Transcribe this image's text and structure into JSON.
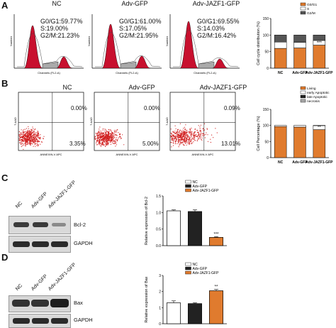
{
  "panels": {
    "A": "A",
    "B": "B",
    "C": "C",
    "D": "D"
  },
  "panelA": {
    "histograms": [
      {
        "title": "NC",
        "g0g1": "G0/G1:59.77%",
        "s": "S:19.00%",
        "g2m": "G2/M:21.23%"
      },
      {
        "title": "Adv-GFP",
        "g0g1": "G0/G1:61.00%",
        "s": "S:17.05%",
        "g2m": "G2/M:21.95%"
      },
      {
        "title": "Adv-JAZF1-GFP",
        "g0g1": "G0/G1:69.55%",
        "s": "S:14.03%",
        "g2m": "G2/M:16.42%"
      }
    ],
    "hist_axis_x": "Channels (FL2-A)",
    "hist_axis_y": "Number"
  },
  "panelB": {
    "plots": [
      {
        "title": "NC",
        "ur": "0.00%",
        "lr": "3.35%"
      },
      {
        "title": "Adv-GFP",
        "ur": "0.00%",
        "lr": "5.00%"
      },
      {
        "title": "Adv-JAZF1-GFP",
        "ur": "0.09%",
        "lr": "13.01%"
      }
    ],
    "scatter_axis_x": "ANNEXIN-V APC",
    "scatter_axis_y": "7-AAD"
  },
  "blotC": {
    "lanes": [
      "NC",
      "Adv-GFP",
      "Adv-JAZF1-GFP"
    ],
    "bands": [
      "Bcl-2",
      "GAPDH"
    ]
  },
  "blotD": {
    "lanes": [
      "NC",
      "Adv-GFP",
      "Adv-JAZF1-GFP"
    ],
    "bands": [
      "Bax",
      "GAPDH"
    ]
  },
  "colors": {
    "orange": "#e07b2e",
    "white": "#ffffff",
    "black": "#222222",
    "gray": "#7a7a7a",
    "red": "#c8102e"
  },
  "chart_data": [
    {
      "id": "cell-cycle",
      "type": "bar",
      "stacked": true,
      "categories": [
        "NC",
        "Adv-GFP",
        "Adv-JAZF1-GFP"
      ],
      "series": [
        {
          "name": "G0/G1",
          "color": "#e07b2e",
          "values": [
            59.77,
            61.0,
            69.55
          ]
        },
        {
          "name": "S",
          "color": "#ffffff",
          "values": [
            19.0,
            17.05,
            14.03
          ]
        },
        {
          "name": "G2/M",
          "color": "#555555",
          "values": [
            21.23,
            21.95,
            16.42
          ]
        }
      ],
      "ylabel": "Cell cycle distribution (%)",
      "ylim": [
        0,
        150
      ],
      "yticks": [
        0,
        50,
        100,
        150
      ],
      "annotations": [
        {
          "category": "Adv-JAZF1-GFP",
          "text": "***"
        }
      ],
      "legend": "top-right"
    },
    {
      "id": "apoptosis",
      "type": "bar",
      "stacked": true,
      "categories": [
        "NC",
        "Adv-GFP",
        "Adv-JAZF1-GFP"
      ],
      "series": [
        {
          "name": "Living",
          "color": "#e07b2e",
          "values": [
            96.65,
            95.0,
            86.9
          ]
        },
        {
          "name": "early Apoptotic",
          "color": "#ffffff",
          "values": [
            3.35,
            5.0,
            13.01
          ]
        },
        {
          "name": "late Apoptotic",
          "color": "#222222",
          "values": [
            0.0,
            0.0,
            0.09
          ]
        },
        {
          "name": "necrosis",
          "color": "#aaaaaa",
          "values": [
            0,
            0,
            0
          ]
        }
      ],
      "ylabel": "Cell Percentage (%)",
      "ylim": [
        0,
        150
      ],
      "yticks": [
        0,
        50,
        100,
        150
      ],
      "annotations": [
        {
          "category": "Adv-JAZF1-GFP",
          "text": "**"
        }
      ],
      "legend": "top-right"
    },
    {
      "id": "bcl2",
      "type": "bar",
      "categories": [
        "NC",
        "Adv-GFP",
        "Adv-JAZF1-GFP"
      ],
      "series": [
        {
          "name": "Relative expression of Bcl-2",
          "values": [
            1.05,
            1.03,
            0.25
          ],
          "errors": [
            0.03,
            0.05,
            0.02
          ]
        }
      ],
      "bar_colors": [
        "#ffffff",
        "#222222",
        "#e07b2e"
      ],
      "legend_entries": [
        "NC",
        "Adv-GFP",
        "Adv-JAZF1-GFP"
      ],
      "ylabel": "Relative expression of Bcl-2",
      "ylim": [
        0,
        1.5
      ],
      "yticks": [
        "0.0",
        "0.5",
        "1.0",
        "1.5"
      ],
      "annotations": [
        {
          "category": "Adv-JAZF1-GFP",
          "text": "***"
        }
      ]
    },
    {
      "id": "bax",
      "type": "bar",
      "categories": [
        "NC",
        "Adv-GFP",
        "Adv-JAZF1-GFP"
      ],
      "series": [
        {
          "name": "Relative expression of Bax",
          "values": [
            1.3,
            1.25,
            2.05
          ],
          "errors": [
            0.12,
            0.05,
            0.08
          ]
        }
      ],
      "bar_colors": [
        "#ffffff",
        "#222222",
        "#e07b2e"
      ],
      "legend_entries": [
        "NC",
        "Adv-GFP",
        "Adv-JAZF1-GFP"
      ],
      "ylabel": "Relative expression of Bax",
      "ylim": [
        0,
        2.5
      ],
      "yticks": [
        "0",
        "1",
        "2",
        "3"
      ],
      "annotations": [
        {
          "category": "Adv-JAZF1-GFP",
          "text": "**"
        }
      ]
    }
  ]
}
